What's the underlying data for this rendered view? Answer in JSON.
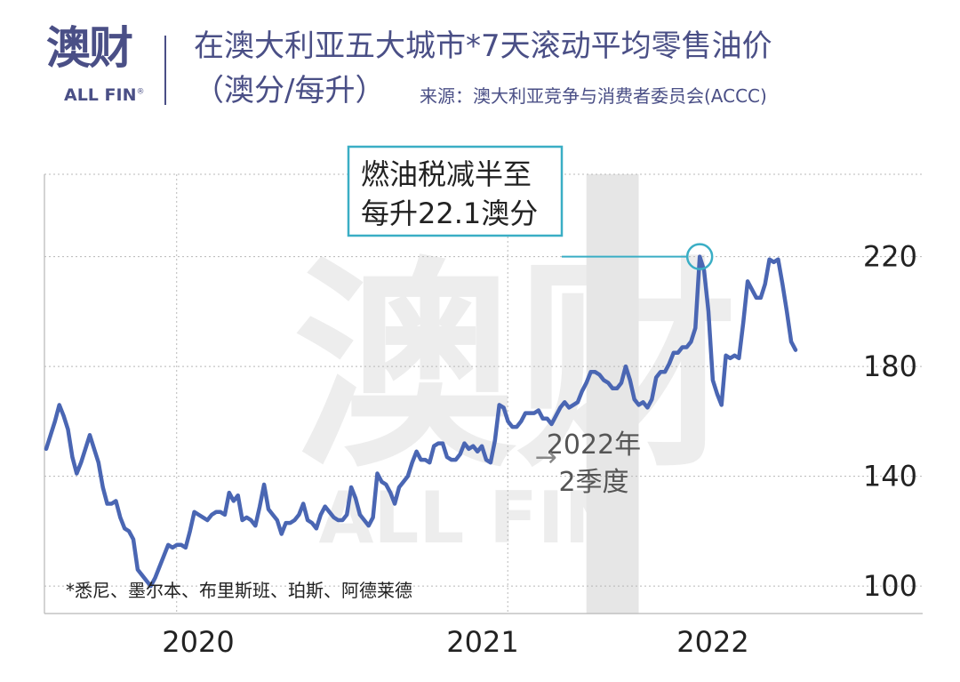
{
  "brand": {
    "name_cn": "澳财",
    "name_en": "ALL FIN",
    "reg_mark": "®"
  },
  "header": {
    "title": "在澳大利亚五大城市*7天滚动平均零售油价",
    "unit": "（澳分/每升）",
    "source": "来源：澳大利亚竞争与消费者委员会(ACCC)"
  },
  "colors": {
    "line": "#4a66b3",
    "header": "#4a4f86",
    "annotation": "#3aaec5",
    "shade": "#e6e6e6",
    "grid": "#b8b8b8",
    "watermark": "#ededed"
  },
  "watermark": {
    "cn": "澳财",
    "en": "ALL FIN"
  },
  "chart_data": {
    "type": "line",
    "series": [
      {
        "values": [
          150,
          155,
          160,
          166,
          162,
          157,
          147,
          141,
          145,
          150,
          155,
          150,
          145,
          136,
          130,
          130,
          131,
          125,
          121,
          120,
          117,
          106,
          104,
          102,
          100,
          103,
          107,
          111,
          115,
          114,
          115,
          115,
          114,
          120,
          127,
          126,
          125,
          124,
          126,
          127,
          127,
          126,
          134,
          131,
          133,
          124,
          125,
          124,
          122,
          129,
          137,
          128,
          126,
          124,
          119,
          123,
          123,
          124,
          126,
          130,
          124,
          123,
          121,
          126,
          129,
          127,
          125,
          124,
          124,
          126,
          136,
          132,
          126,
          124,
          122,
          125,
          141,
          138,
          137,
          134,
          130,
          136,
          138,
          140,
          145,
          149,
          146,
          146,
          145,
          151,
          152,
          152,
          147,
          146,
          146,
          148,
          152,
          150,
          151,
          149,
          151,
          146,
          145,
          153,
          166,
          165,
          160,
          158,
          158,
          160,
          163,
          163,
          163,
          164,
          161,
          161,
          159,
          162,
          165,
          167,
          165,
          166,
          167,
          171,
          174,
          178,
          178,
          177,
          175,
          174,
          172,
          172,
          174,
          180,
          175,
          168,
          166,
          167,
          165,
          168,
          176,
          178,
          178,
          181,
          185,
          185,
          187,
          187,
          189,
          194,
          220,
          215,
          200,
          175,
          170,
          166,
          184,
          183,
          184,
          183,
          196,
          211,
          208,
          205,
          205,
          210,
          219,
          218,
          219,
          210,
          200,
          189,
          186
        ]
      }
    ],
    "x_ticks": [
      "2020",
      "2021",
      "2022"
    ],
    "y_ticks": [
      100,
      140,
      180,
      220
    ],
    "ylim": [
      90,
      250
    ],
    "annotation": {
      "text_line1": "燃油税减半至",
      "text_line2": "每升22.1澳分",
      "point_index": 150
    },
    "shaded_region": {
      "label_line1": "2022年",
      "label_line2": "2季度",
      "arrow": "→",
      "start_index": 124,
      "end_index": 136
    },
    "footnote": "*悉尼、墨尔本、布里斯班、珀斯、阿德莱德",
    "grid": true
  }
}
